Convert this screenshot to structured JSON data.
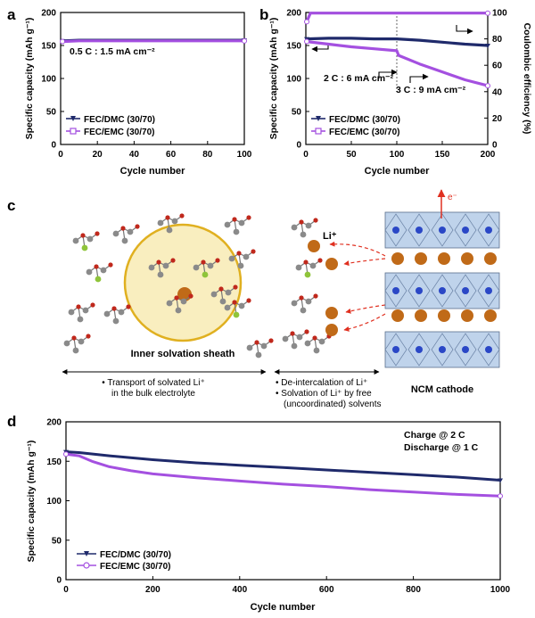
{
  "panels": {
    "a": "a",
    "b": "b",
    "c": "c",
    "d": "d"
  },
  "legend": {
    "dmc": "FEC/DMC (30/70)",
    "emc": "FEC/EMC (30/70)"
  },
  "colors": {
    "dmc": "#1f2a6b",
    "emc": "#a450e0",
    "li": "#c06a18",
    "sheath_fill": "#f9eebf",
    "sheath_stroke": "#e0b020",
    "crystal": "#a9c4e4",
    "arrow_red": "#e03020"
  },
  "chart_data": [
    {
      "panel": "a",
      "type": "line",
      "xlabel": "Cycle number",
      "ylabel": "Specific capacity (mAh g⁻¹)",
      "xlim": [
        0,
        100
      ],
      "ylim": [
        0,
        200
      ],
      "xticks": [
        0,
        20,
        40,
        60,
        80,
        100
      ],
      "yticks": [
        0,
        50,
        100,
        150,
        200
      ],
      "annotation": "0.5 C : 1.5 mA cm⁻²",
      "legend_position": "bottom-left",
      "series": [
        {
          "name": "FEC/DMC (30/70)",
          "x": [
            1,
            10,
            20,
            30,
            40,
            50,
            60,
            70,
            80,
            90,
            100
          ],
          "y": [
            157,
            158,
            158,
            158,
            158,
            158,
            158,
            158,
            158,
            158,
            158
          ]
        },
        {
          "name": "FEC/EMC (30/70)",
          "x": [
            1,
            10,
            20,
            30,
            40,
            50,
            60,
            70,
            80,
            90,
            100
          ],
          "y": [
            156,
            157,
            157,
            157,
            157,
            157,
            157,
            157,
            157,
            157,
            157
          ]
        }
      ]
    },
    {
      "panel": "b",
      "type": "line",
      "xlabel": "Cycle number",
      "ylabel": "Specific capacity (mAh g⁻¹)",
      "y2label": "Coulombic efficiency (%)",
      "xlim": [
        0,
        200
      ],
      "ylim": [
        0,
        200
      ],
      "y2lim": [
        0,
        100
      ],
      "xticks": [
        0,
        50,
        100,
        150,
        200
      ],
      "yticks": [
        0,
        50,
        100,
        150,
        200
      ],
      "y2ticks": [
        0,
        20,
        40,
        60,
        80,
        100
      ],
      "annotations": [
        "2 C : 6 mA cm⁻²",
        "3 C : 9 mA cm⁻²"
      ],
      "legend_position": "bottom-left",
      "series": [
        {
          "name": "FEC/DMC (30/70)",
          "x": [
            1,
            25,
            50,
            75,
            100,
            125,
            150,
            175,
            200
          ],
          "y": [
            160,
            161,
            161,
            160,
            160,
            158,
            155,
            152,
            150
          ]
        },
        {
          "name": "FEC/EMC (30/70)",
          "x": [
            1,
            25,
            50,
            75,
            100,
            102,
            125,
            150,
            175,
            200
          ],
          "y": [
            156,
            152,
            148,
            145,
            142,
            135,
            122,
            110,
            98,
            89
          ]
        },
        {
          "name": "",
          "axis": "right",
          "x": [
            1,
            5,
            50,
            100,
            150,
            200
          ],
          "y": [
            93,
            99.5,
            99.5,
            99.5,
            99.5,
            99.5
          ]
        }
      ]
    },
    {
      "panel": "d",
      "type": "line",
      "xlabel": "Cycle number",
      "ylabel": "Specific capacity (mAh g⁻¹)",
      "xlim": [
        0,
        1000
      ],
      "ylim": [
        0,
        200
      ],
      "xticks": [
        0,
        200,
        400,
        600,
        800,
        1000
      ],
      "yticks": [
        0,
        50,
        100,
        150,
        200
      ],
      "annotations": [
        "Charge @ 2 C",
        "Discharge @ 1 C"
      ],
      "legend_position": "bottom-left",
      "series": [
        {
          "name": "FEC/DMC (30/70)",
          "x": [
            0,
            30,
            100,
            200,
            300,
            400,
            500,
            600,
            700,
            800,
            900,
            1000
          ],
          "y": [
            162,
            161,
            157,
            152,
            148,
            145,
            142,
            139,
            136,
            133,
            130,
            126
          ]
        },
        {
          "name": "FEC/EMC (30/70)",
          "x": [
            0,
            30,
            60,
            100,
            150,
            200,
            300,
            400,
            500,
            600,
            700,
            800,
            900,
            1000
          ],
          "y": [
            159,
            157,
            150,
            143,
            138,
            134,
            129,
            125,
            121,
            118,
            114,
            111,
            108,
            106
          ]
        }
      ]
    }
  ],
  "schematic": {
    "e_label": "e⁻",
    "li_label": "Li⁺",
    "sheath_label": "Inner solvation sheath",
    "cathode_label": "NCM cathode",
    "left_caption": [
      "• Transport of solvated Li⁺",
      "in the bulk electrolyte"
    ],
    "right_caption": [
      "• De-intercalation of Li⁺",
      "• Solvation of Li⁺ by free",
      "(uncoordinated) solvents"
    ]
  }
}
